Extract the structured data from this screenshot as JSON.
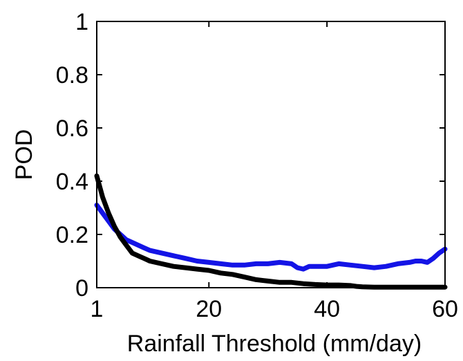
{
  "chart_data": {
    "type": "line",
    "title": "",
    "xlabel": "Rainfall Threshold (mm/day)",
    "ylabel": "POD",
    "xlim": [
      1,
      60
    ],
    "ylim": [
      0,
      1
    ],
    "x_ticks": [
      1,
      20,
      40,
      60
    ],
    "x_tick_labels": [
      "1",
      "20",
      "40",
      "60"
    ],
    "y_ticks": [
      0,
      0.2,
      0.4,
      0.6,
      0.8,
      1
    ],
    "y_tick_labels": [
      "0",
      "0.2",
      "0.4",
      "0.6",
      "0.8",
      "1"
    ],
    "grid": false,
    "legend": false,
    "series": [
      {
        "color": "#1414e6",
        "x": [
          1,
          2,
          3,
          4,
          5,
          6,
          7,
          8,
          9,
          10,
          12,
          14,
          16,
          18,
          20,
          22,
          24,
          26,
          28,
          30,
          32,
          34,
          35,
          36,
          37,
          38,
          40,
          42,
          44,
          46,
          48,
          50,
          52,
          54,
          55,
          56,
          57,
          58,
          59,
          60
        ],
        "y": [
          0.31,
          0.28,
          0.25,
          0.22,
          0.2,
          0.18,
          0.17,
          0.16,
          0.15,
          0.14,
          0.13,
          0.12,
          0.11,
          0.1,
          0.095,
          0.09,
          0.085,
          0.085,
          0.09,
          0.09,
          0.095,
          0.09,
          0.075,
          0.07,
          0.08,
          0.08,
          0.08,
          0.09,
          0.085,
          0.08,
          0.075,
          0.08,
          0.09,
          0.095,
          0.1,
          0.1,
          0.095,
          0.11,
          0.13,
          0.145
        ]
      },
      {
        "color": "#000000",
        "x": [
          1,
          2,
          3,
          4,
          5,
          6,
          7,
          8,
          9,
          10,
          12,
          14,
          16,
          18,
          20,
          22,
          24,
          26,
          28,
          30,
          32,
          34,
          36,
          38,
          40,
          42,
          44,
          45,
          46,
          48,
          50,
          52,
          54,
          56,
          58,
          60
        ],
        "y": [
          0.42,
          0.34,
          0.28,
          0.23,
          0.19,
          0.16,
          0.13,
          0.12,
          0.11,
          0.1,
          0.09,
          0.08,
          0.075,
          0.07,
          0.065,
          0.055,
          0.05,
          0.04,
          0.03,
          0.025,
          0.02,
          0.02,
          0.015,
          0.012,
          0.01,
          0.01,
          0.008,
          0.005,
          0.003,
          0.002,
          0.002,
          0.002,
          0.002,
          0.002,
          0.002,
          0.002
        ]
      }
    ]
  }
}
